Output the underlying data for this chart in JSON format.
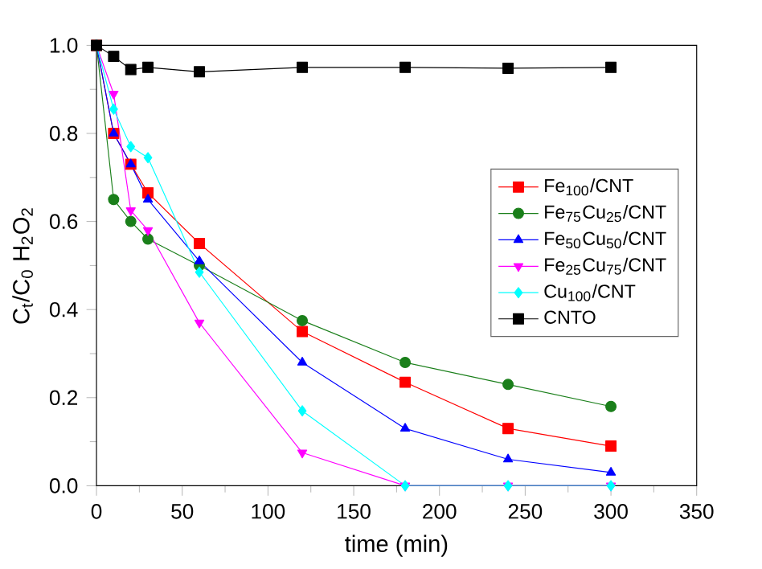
{
  "chart_data": {
    "type": "line",
    "xlabel": "time (min)",
    "ylabel": "C$_{t}$/C$_{0}$ H$_{2}$O$_{2}$",
    "x": [
      0,
      10,
      20,
      30,
      60,
      120,
      180,
      240,
      300
    ],
    "xlim": [
      0,
      350
    ],
    "xticks": [
      0,
      50,
      100,
      150,
      200,
      250,
      300,
      350
    ],
    "ylim": [
      0,
      1
    ],
    "yticks": [
      {
        "value": 0,
        "label": "0.0"
      },
      0.2,
      0.4,
      0.6,
      0.8,
      {
        "value": 1,
        "label": "1.0"
      }
    ],
    "legend": "right",
    "grid": false,
    "series": [
      {
        "name": "Fe$_{100}$/CNT",
        "color": "#ff0000",
        "marker": "square",
        "values": [
          1,
          0.8,
          0.73,
          0.665,
          0.55,
          0.35,
          0.235,
          0.13,
          0.09
        ]
      },
      {
        "name": "Fe$_{75}$Cu$_{25}$/CNT",
        "color": "#1a7f1a",
        "marker": "circle",
        "values": [
          1,
          0.65,
          0.6,
          0.56,
          0.5,
          0.375,
          0.28,
          0.23,
          0.18
        ]
      },
      {
        "name": "Fe$_{50}$Cu$_{50}$/CNT",
        "color": "#0000ff",
        "marker": "triangle",
        "values": [
          1,
          0.8,
          0.73,
          0.65,
          0.51,
          0.28,
          0.13,
          0.06,
          0.03
        ]
      },
      {
        "name": "Fe$_{25}$Cu$_{75}$/CNT",
        "color": "#ff00ff",
        "marker": "triangle down",
        "values": [
          1,
          0.89,
          0.625,
          0.58,
          0.37,
          0.075,
          0,
          0,
          0
        ]
      },
      {
        "name": "Cu$_{100}$/CNT",
        "color": "#00ffff",
        "marker": "diamond",
        "values": [
          1,
          0.855,
          0.77,
          0.745,
          0.485,
          0.17,
          0,
          0,
          0
        ]
      },
      {
        "name": "CNTO",
        "color": "#000000",
        "marker": "square",
        "values": [
          1,
          0.975,
          0.945,
          0.95,
          0.94,
          0.95,
          0.95,
          0.948,
          0.95
        ]
      }
    ]
  }
}
